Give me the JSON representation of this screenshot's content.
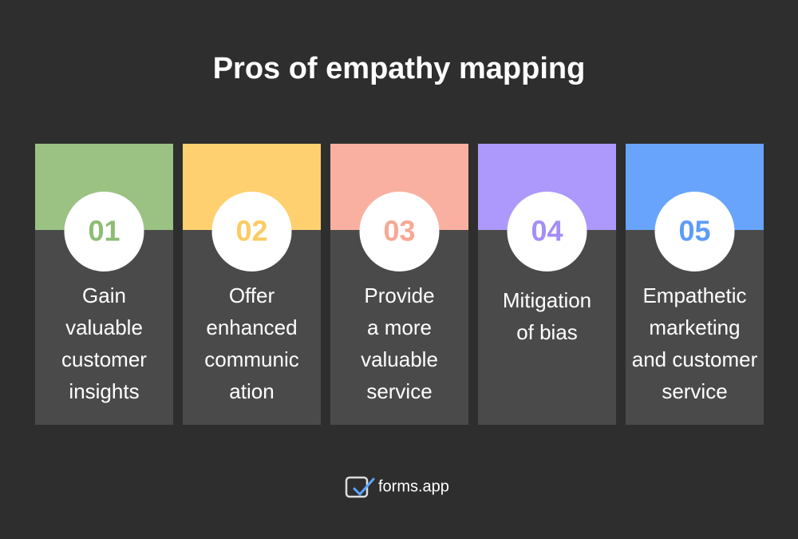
{
  "title": "Pros of empathy mapping",
  "items": [
    {
      "number": "01",
      "color": "#9bc283",
      "number_color": "#8dbd74",
      "lines": [
        "Gain",
        "valuable",
        "customer",
        "insights"
      ]
    },
    {
      "number": "02",
      "color": "#ffd070",
      "number_color": "#fdcb63",
      "lines": [
        "Offer",
        "enhanced",
        "communic",
        "ation"
      ]
    },
    {
      "number": "03",
      "color": "#f9b0a0",
      "number_color": "#f7a894",
      "lines": [
        "Provide",
        "a more",
        "valuable",
        "service"
      ]
    },
    {
      "number": "04",
      "color": "#ad98fb",
      "number_color": "#a58ef9",
      "lines": [
        "Mitigation",
        "of bias"
      ]
    },
    {
      "number": "05",
      "color": "#68a4fb",
      "number_color": "#5f9cf8",
      "lines": [
        "Empathetic",
        "marketing",
        "and customer",
        "service"
      ]
    }
  ],
  "footer": {
    "brand": "forms.app"
  }
}
